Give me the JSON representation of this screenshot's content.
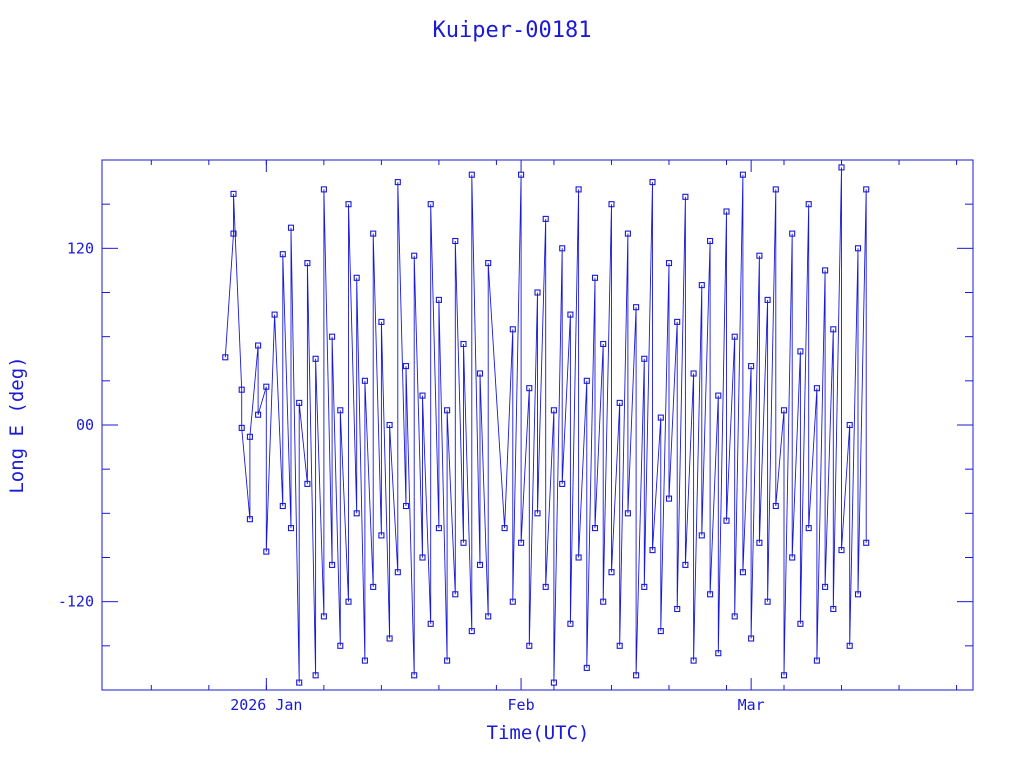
{
  "chart_data": {
    "type": "scatter",
    "title": "Kuiper-00181",
    "xlabel": "Time(UTC)",
    "ylabel": "Long E (deg)",
    "x_unit": "date",
    "x_range": [
      "2025-12-12",
      "2026-03-28"
    ],
    "ylim": [
      -180,
      180
    ],
    "x_ticks": [
      {
        "date": "2026-01-01",
        "label": "2026 Jan"
      },
      {
        "date": "2026-02-01",
        "label": "Feb"
      },
      {
        "date": "2026-03-01",
        "label": "Mar"
      }
    ],
    "y_ticks": [
      {
        "value": 120,
        "label": "120"
      },
      {
        "value": 0,
        "label": "00"
      },
      {
        "value": -120,
        "label": "-120"
      }
    ],
    "marker": "open-square",
    "line": true,
    "grid": false,
    "color": "#1a1ad6",
    "series": [
      {
        "points": [
          [
            "2025-12-27",
            46
          ],
          [
            "2025-12-28",
            130
          ],
          [
            "2025-12-28",
            157
          ],
          [
            "2025-12-29",
            24
          ],
          [
            "2025-12-29",
            -2
          ],
          [
            "2025-12-30",
            -64
          ],
          [
            "2025-12-30",
            -8
          ],
          [
            "2025-12-31",
            54
          ],
          [
            "2025-12-31",
            7
          ],
          [
            "2026-01-01",
            26
          ],
          [
            "2026-01-01",
            -86
          ],
          [
            "2026-01-02",
            75
          ],
          [
            "2026-01-03",
            -55
          ],
          [
            "2026-01-03",
            116
          ],
          [
            "2026-01-04",
            -70
          ],
          [
            "2026-01-04",
            134
          ],
          [
            "2026-01-05",
            -175
          ],
          [
            "2026-01-05",
            15
          ],
          [
            "2026-01-06",
            -40
          ],
          [
            "2026-01-06",
            110
          ],
          [
            "2026-01-07",
            -170
          ],
          [
            "2026-01-07",
            45
          ],
          [
            "2026-01-08",
            -130
          ],
          [
            "2026-01-08",
            160
          ],
          [
            "2026-01-09",
            -95
          ],
          [
            "2026-01-09",
            60
          ],
          [
            "2026-01-10",
            -150
          ],
          [
            "2026-01-10",
            10
          ],
          [
            "2026-01-11",
            -120
          ],
          [
            "2026-01-11",
            150
          ],
          [
            "2026-01-12",
            -60
          ],
          [
            "2026-01-12",
            100
          ],
          [
            "2026-01-13",
            -160
          ],
          [
            "2026-01-13",
            30
          ],
          [
            "2026-01-14",
            -110
          ],
          [
            "2026-01-14",
            130
          ],
          [
            "2026-01-15",
            -75
          ],
          [
            "2026-01-15",
            70
          ],
          [
            "2026-01-16",
            -145
          ],
          [
            "2026-01-16",
            0
          ],
          [
            "2026-01-17",
            -100
          ],
          [
            "2026-01-17",
            165
          ],
          [
            "2026-01-18",
            -55
          ],
          [
            "2026-01-18",
            40
          ],
          [
            "2026-01-19",
            -170
          ],
          [
            "2026-01-19",
            115
          ],
          [
            "2026-01-20",
            -90
          ],
          [
            "2026-01-20",
            20
          ],
          [
            "2026-01-21",
            -135
          ],
          [
            "2026-01-21",
            150
          ],
          [
            "2026-01-22",
            -70
          ],
          [
            "2026-01-22",
            85
          ],
          [
            "2026-01-23",
            -160
          ],
          [
            "2026-01-23",
            10
          ],
          [
            "2026-01-24",
            -115
          ],
          [
            "2026-01-24",
            125
          ],
          [
            "2026-01-25",
            -80
          ],
          [
            "2026-01-25",
            55
          ],
          [
            "2026-01-26",
            -140
          ],
          [
            "2026-01-26",
            170
          ],
          [
            "2026-01-27",
            -95
          ],
          [
            "2026-01-27",
            35
          ],
          [
            "2026-01-28",
            -130
          ],
          [
            "2026-01-28",
            110
          ],
          [
            "2026-01-30",
            -70
          ],
          [
            "2026-01-31",
            65
          ],
          [
            "2026-01-31",
            -120
          ],
          [
            "2026-02-01",
            170
          ],
          [
            "2026-02-01",
            -80
          ],
          [
            "2026-02-02",
            25
          ],
          [
            "2026-02-02",
            -150
          ],
          [
            "2026-02-03",
            90
          ],
          [
            "2026-02-03",
            -60
          ],
          [
            "2026-02-04",
            140
          ],
          [
            "2026-02-04",
            -110
          ],
          [
            "2026-02-05",
            10
          ],
          [
            "2026-02-05",
            -175
          ],
          [
            "2026-02-06",
            120
          ],
          [
            "2026-02-06",
            -40
          ],
          [
            "2026-02-07",
            75
          ],
          [
            "2026-02-07",
            -135
          ],
          [
            "2026-02-08",
            160
          ],
          [
            "2026-02-08",
            -90
          ],
          [
            "2026-02-09",
            30
          ],
          [
            "2026-02-09",
            -165
          ],
          [
            "2026-02-10",
            100
          ],
          [
            "2026-02-10",
            -70
          ],
          [
            "2026-02-11",
            55
          ],
          [
            "2026-02-11",
            -120
          ],
          [
            "2026-02-12",
            150
          ],
          [
            "2026-02-12",
            -100
          ],
          [
            "2026-02-13",
            15
          ],
          [
            "2026-02-13",
            -150
          ],
          [
            "2026-02-14",
            130
          ],
          [
            "2026-02-14",
            -60
          ],
          [
            "2026-02-15",
            80
          ],
          [
            "2026-02-15",
            -170
          ],
          [
            "2026-02-16",
            45
          ],
          [
            "2026-02-16",
            -110
          ],
          [
            "2026-02-17",
            165
          ],
          [
            "2026-02-17",
            -85
          ],
          [
            "2026-02-18",
            5
          ],
          [
            "2026-02-18",
            -140
          ],
          [
            "2026-02-19",
            110
          ],
          [
            "2026-02-19",
            -50
          ],
          [
            "2026-02-20",
            70
          ],
          [
            "2026-02-20",
            -125
          ],
          [
            "2026-02-21",
            155
          ],
          [
            "2026-02-21",
            -95
          ],
          [
            "2026-02-22",
            35
          ],
          [
            "2026-02-22",
            -160
          ],
          [
            "2026-02-23",
            95
          ],
          [
            "2026-02-23",
            -75
          ],
          [
            "2026-02-24",
            125
          ],
          [
            "2026-02-24",
            -115
          ],
          [
            "2026-02-25",
            20
          ],
          [
            "2026-02-25",
            -155
          ],
          [
            "2026-02-26",
            145
          ],
          [
            "2026-02-26",
            -65
          ],
          [
            "2026-02-27",
            60
          ],
          [
            "2026-02-27",
            -130
          ],
          [
            "2026-02-28",
            170
          ],
          [
            "2026-02-28",
            -100
          ],
          [
            "2026-03-01",
            40
          ],
          [
            "2026-03-01",
            -145
          ],
          [
            "2026-03-02",
            115
          ],
          [
            "2026-03-02",
            -80
          ],
          [
            "2026-03-03",
            85
          ],
          [
            "2026-03-03",
            -120
          ],
          [
            "2026-03-04",
            160
          ],
          [
            "2026-03-04",
            -55
          ],
          [
            "2026-03-05",
            10
          ],
          [
            "2026-03-05",
            -170
          ],
          [
            "2026-03-06",
            130
          ],
          [
            "2026-03-06",
            -90
          ],
          [
            "2026-03-07",
            50
          ],
          [
            "2026-03-07",
            -135
          ],
          [
            "2026-03-08",
            150
          ],
          [
            "2026-03-08",
            -70
          ],
          [
            "2026-03-09",
            25
          ],
          [
            "2026-03-09",
            -160
          ],
          [
            "2026-03-10",
            105
          ],
          [
            "2026-03-10",
            -110
          ],
          [
            "2026-03-11",
            65
          ],
          [
            "2026-03-11",
            -125
          ],
          [
            "2026-03-12",
            175
          ],
          [
            "2026-03-12",
            -85
          ],
          [
            "2026-03-13",
            0
          ],
          [
            "2026-03-13",
            -150
          ],
          [
            "2026-03-14",
            120
          ],
          [
            "2026-03-14",
            -115
          ],
          [
            "2026-03-15",
            160
          ],
          [
            "2026-03-15",
            -80
          ]
        ]
      }
    ]
  }
}
